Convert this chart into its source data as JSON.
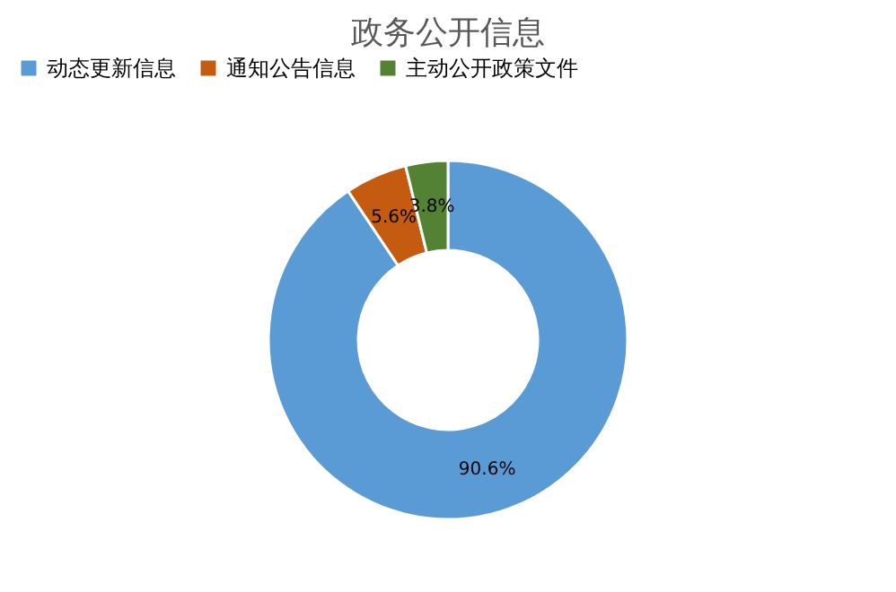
{
  "chart_data": {
    "type": "donut",
    "title": "政务公开信息",
    "categories": [
      "动态更新信息",
      "通知公告信息",
      "主动公开政策文件"
    ],
    "values": [
      90.6,
      5.6,
      3.8
    ],
    "colors": [
      "#5b9bd5",
      "#c55a11",
      "#548235"
    ],
    "value_labels": [
      "90.6%",
      "5.6%",
      "3.8%"
    ],
    "legend": "top"
  }
}
